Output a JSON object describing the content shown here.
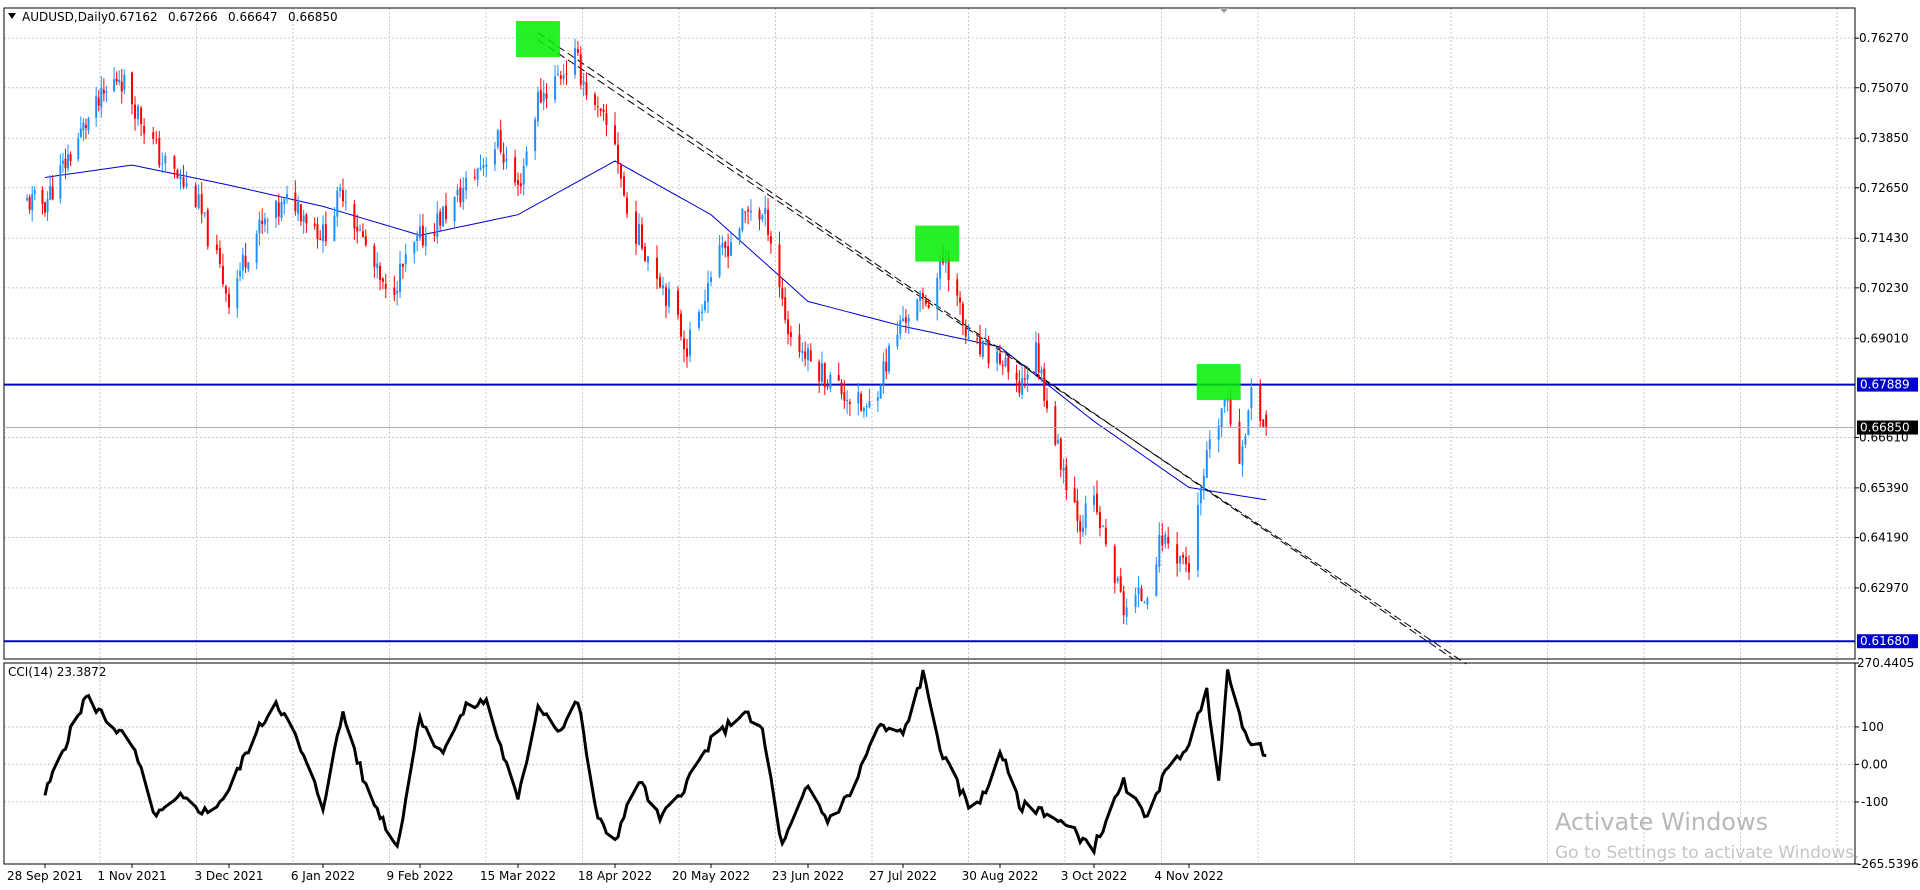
{
  "header": {
    "symbol_text": "AUDUSD,Daily",
    "open": "0.67162",
    "high": "0.67266",
    "low": "0.66647",
    "close": "0.66850"
  },
  "indicator": {
    "label": "CCI(14) 23.3872"
  },
  "watermark": {
    "line1": "Activate Windows",
    "line2": "Go to Settings to activate Windows."
  },
  "colors": {
    "bull": "#1e90ff",
    "bear": "#ff0000",
    "ma": "#0000cd",
    "hline": "#0000cd",
    "trend": "#000000",
    "zone": "#00ee00",
    "cci": "#000000",
    "grid": "#c8c8c8"
  },
  "chart_data": [
    {
      "type": "candlestick",
      "title": "AUDUSD,Daily",
      "ylim": [
        0.6125,
        0.77
      ],
      "y_ticks": [
        "0.76270",
        "0.75070",
        "0.73850",
        "0.72650",
        "0.71430",
        "0.70230",
        "0.69010",
        "0.66610",
        "0.65390",
        "0.64190",
        "0.62970"
      ],
      "x_labels": [
        "28 Sep 2021",
        "1 Nov 2021",
        "3 Dec 2021",
        "6 Jan 2022",
        "9 Feb 2022",
        "15 Mar 2022",
        "18 Apr 2022",
        "20 May 2022",
        "23 Jun 2022",
        "27 Jul 2022",
        "30 Aug 2022",
        "3 Oct 2022",
        "4 Nov 2022"
      ],
      "close_anchors": [
        [
          "28 Sep 2021",
          0.723
        ],
        [
          "14 Oct 2021",
          0.742
        ],
        [
          "27 Oct 2021",
          0.754
        ],
        [
          "1 Nov 2021",
          0.748
        ],
        [
          "10 Nov 2021",
          0.734
        ],
        [
          "22 Nov 2021",
          0.724
        ],
        [
          "3 Dec 2021",
          0.7
        ],
        [
          "12 Dec 2021",
          0.715
        ],
        [
          "26 Dec 2021",
          0.724
        ],
        [
          "6 Jan 2022",
          0.715
        ],
        [
          "13 Jan 2022",
          0.726
        ],
        [
          "28 Jan 2022",
          0.7
        ],
        [
          "9 Feb 2022",
          0.714
        ],
        [
          "21 Feb 2022",
          0.723
        ],
        [
          "28 Feb 2022",
          0.73
        ],
        [
          "8 Mar 2022",
          0.738
        ],
        [
          "15 Mar 2022",
          0.726
        ],
        [
          "22 Mar 2022",
          0.748
        ],
        [
          "4 Apr 2022",
          0.758
        ],
        [
          "11 Apr 2022",
          0.745
        ],
        [
          "18 Apr 2022",
          0.738
        ],
        [
          "22 Apr 2022",
          0.72
        ],
        [
          "3 May 2022",
          0.705
        ],
        [
          "12 May 2022",
          0.688
        ],
        [
          "20 May 2022",
          0.706
        ],
        [
          "3 Jun 2022",
          0.722
        ],
        [
          "9 Jun 2022",
          0.718
        ],
        [
          "16 Jun 2022",
          0.692
        ],
        [
          "23 Jun 2022",
          0.685
        ],
        [
          "1 Jul 2022",
          0.68
        ],
        [
          "14 Jul 2022",
          0.672
        ],
        [
          "27 Jul 2022",
          0.695
        ],
        [
          "5 Aug 2022",
          0.7
        ],
        [
          "11 Aug 2022",
          0.71
        ],
        [
          "19 Aug 2022",
          0.688
        ],
        [
          "30 Aug 2022",
          0.685
        ],
        [
          "5 Sep 2022",
          0.677
        ],
        [
          "12 Sep 2022",
          0.687
        ],
        [
          "20 Sep 2022",
          0.663
        ],
        [
          "28 Sep 2022",
          0.646
        ],
        [
          "3 Oct 2022",
          0.65
        ],
        [
          "13 Oct 2022",
          0.625
        ],
        [
          "20 Oct 2022",
          0.628
        ],
        [
          "26 Oct 2022",
          0.642
        ],
        [
          "4 Nov 2022",
          0.635
        ],
        [
          "10 Nov 2022",
          0.66
        ],
        [
          "16 Nov 2022",
          0.675
        ],
        [
          "21 Nov 2022",
          0.662
        ],
        [
          "25 Nov 2022",
          0.676
        ],
        [
          "30 Nov 2022",
          0.6685
        ]
      ],
      "ma_anchors": [
        [
          "28 Sep 2021",
          0.729
        ],
        [
          "1 Nov 2021",
          0.732
        ],
        [
          "6 Jan 2022",
          0.722
        ],
        [
          "9 Feb 2022",
          0.715
        ],
        [
          "15 Mar 2022",
          0.72
        ],
        [
          "18 Apr 2022",
          0.733
        ],
        [
          "20 May 2022",
          0.72
        ],
        [
          "23 Jun 2022",
          0.699
        ],
        [
          "27 Jul 2022",
          0.693
        ],
        [
          "30 Aug 2022",
          0.688
        ],
        [
          "3 Oct 2022",
          0.67
        ],
        [
          "4 Nov 2022",
          0.654
        ],
        [
          "30 Nov 2022",
          0.651
        ]
      ],
      "levels": [
        {
          "value": 0.67889,
          "label": "0.67889"
        },
        {
          "value": 0.6168,
          "label": "0.61680"
        }
      ],
      "current_price": "0.66850",
      "trendline": {
        "start": [
          "22 Mar 2022",
          0.764
        ],
        "end": [
          "1 Feb 2023",
          0.6125
        ]
      },
      "highlight_zones": [
        [
          "22 Mar 2022",
          0.7625
        ],
        [
          "8 Aug 2022",
          0.713
        ],
        [
          "14 Nov 2022",
          0.6795
        ]
      ]
    },
    {
      "type": "line",
      "title": "CCI(14) 23.3872",
      "ylim": [
        -265.5396,
        270.4405
      ],
      "y_ticks": [
        "270.4405",
        "100",
        "0.00",
        "-100",
        "-265.5396"
      ],
      "cci_anchors": [
        [
          "28 Sep 2021",
          -80
        ],
        [
          "5 Oct 2021",
          40
        ],
        [
          "14 Oct 2021",
          180
        ],
        [
          "25 Oct 2021",
          100
        ],
        [
          "1 Nov 2021",
          50
        ],
        [
          "9 Nov 2021",
          -140
        ],
        [
          "17 Nov 2021",
          -90
        ],
        [
          "26 Nov 2021",
          -130
        ],
        [
          "3 Dec 2021",
          -70
        ],
        [
          "11 Dec 2021",
          60
        ],
        [
          "20 Dec 2021",
          170
        ],
        [
          "26 Dec 2021",
          90
        ],
        [
          "6 Jan 2022",
          -110
        ],
        [
          "13 Jan 2022",
          140
        ],
        [
          "21 Jan 2022",
          -60
        ],
        [
          "1 Feb 2022",
          -220
        ],
        [
          "9 Feb 2022",
          130
        ],
        [
          "16 Feb 2022",
          30
        ],
        [
          "25 Feb 2022",
          150
        ],
        [
          "4 Mar 2022",
          170
        ],
        [
          "15 Mar 2022",
          -100
        ],
        [
          "22 Mar 2022",
          160
        ],
        [
          "30 Mar 2022",
          90
        ],
        [
          "5 Apr 2022",
          170
        ],
        [
          "12 Apr 2022",
          -150
        ],
        [
          "18 Apr 2022",
          -200
        ],
        [
          "26 Apr 2022",
          -40
        ],
        [
          "3 May 2022",
          -150
        ],
        [
          "11 May 2022",
          -60
        ],
        [
          "20 May 2022",
          60
        ],
        [
          "31 May 2022",
          140
        ],
        [
          "7 Jun 2022",
          90
        ],
        [
          "14 Jun 2022",
          -220
        ],
        [
          "23 Jun 2022",
          -60
        ],
        [
          "30 Jun 2022",
          -150
        ],
        [
          "8 Jul 2022",
          -80
        ],
        [
          "18 Jul 2022",
          100
        ],
        [
          "27 Jul 2022",
          80
        ],
        [
          "3 Aug 2022",
          240
        ],
        [
          "10 Aug 2022",
          20
        ],
        [
          "19 Aug 2022",
          -110
        ],
        [
          "25 Aug 2022",
          -80
        ],
        [
          "30 Aug 2022",
          40
        ],
        [
          "6 Sep 2022",
          -110
        ],
        [
          "14 Sep 2022",
          -120
        ],
        [
          "20 Sep 2022",
          -150
        ],
        [
          "3 Oct 2022",
          -220
        ],
        [
          "13 Oct 2022",
          -50
        ],
        [
          "20 Oct 2022",
          -140
        ],
        [
          "26 Oct 2022",
          -40
        ],
        [
          "4 Nov 2022",
          60
        ],
        [
          "10 Nov 2022",
          190
        ],
        [
          "14 Nov 2022",
          -30
        ],
        [
          "17 Nov 2022",
          250
        ],
        [
          "22 Nov 2022",
          90
        ],
        [
          "26 Nov 2022",
          60
        ],
        [
          "30 Nov 2022",
          23.3872
        ]
      ]
    }
  ]
}
